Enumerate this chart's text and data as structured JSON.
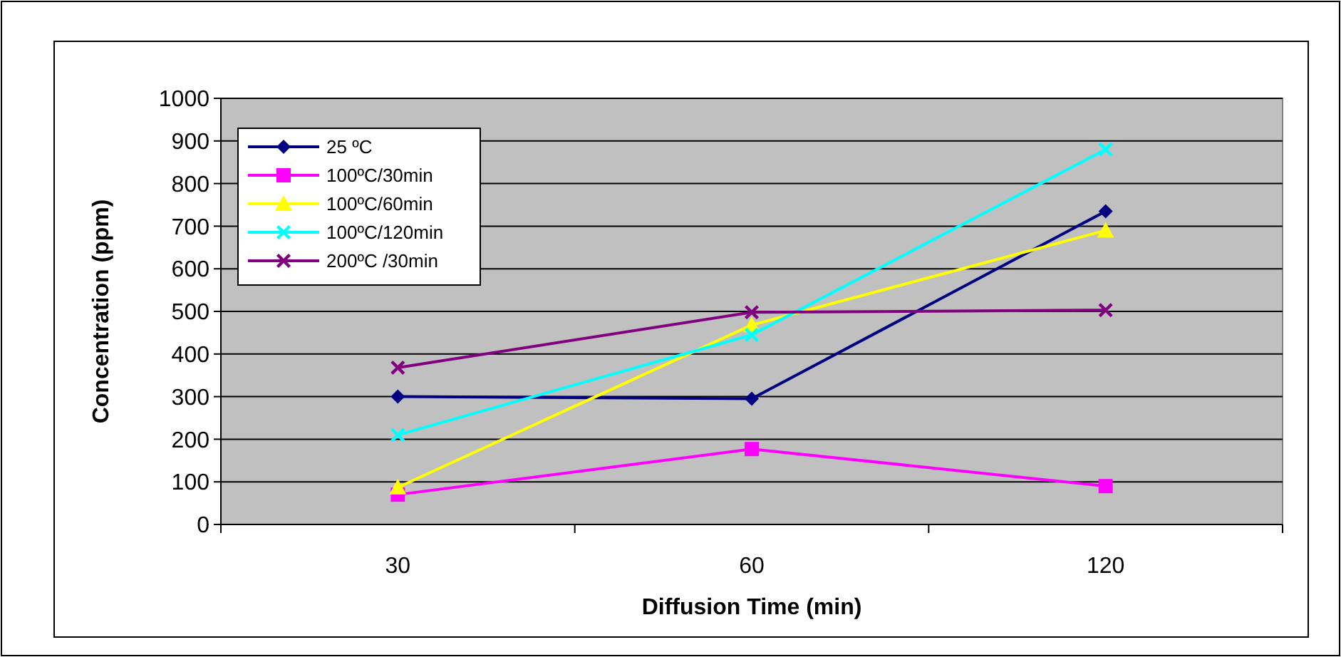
{
  "chart_data": {
    "type": "line",
    "xlabel": "Diffusion Time (min)",
    "ylabel": "Concentration (ppm)",
    "categories": [
      "30",
      "60",
      "120"
    ],
    "series": [
      {
        "name": "25 ºC",
        "color": "#000080",
        "marker": "diamond",
        "values": [
          300,
          295,
          735
        ]
      },
      {
        "name": "100ºC/30min",
        "color": "#ff00ff",
        "marker": "square",
        "values": [
          70,
          177,
          90
        ]
      },
      {
        "name": "100ºC/60min",
        "color": "#ffff00",
        "marker": "triangle",
        "values": [
          87,
          468,
          690
        ]
      },
      {
        "name": "100ºC/120min",
        "color": "#00ffff",
        "marker": "cross",
        "values": [
          210,
          445,
          880
        ]
      },
      {
        "name": "200ºC /30min",
        "color": "#800080",
        "marker": "cross",
        "values": [
          368,
          498,
          503
        ]
      }
    ],
    "ylim": [
      0,
      1000
    ],
    "yticks": [
      0,
      100,
      200,
      300,
      400,
      500,
      600,
      700,
      800,
      900,
      1000
    ],
    "grid": "y",
    "legend": "top left"
  }
}
